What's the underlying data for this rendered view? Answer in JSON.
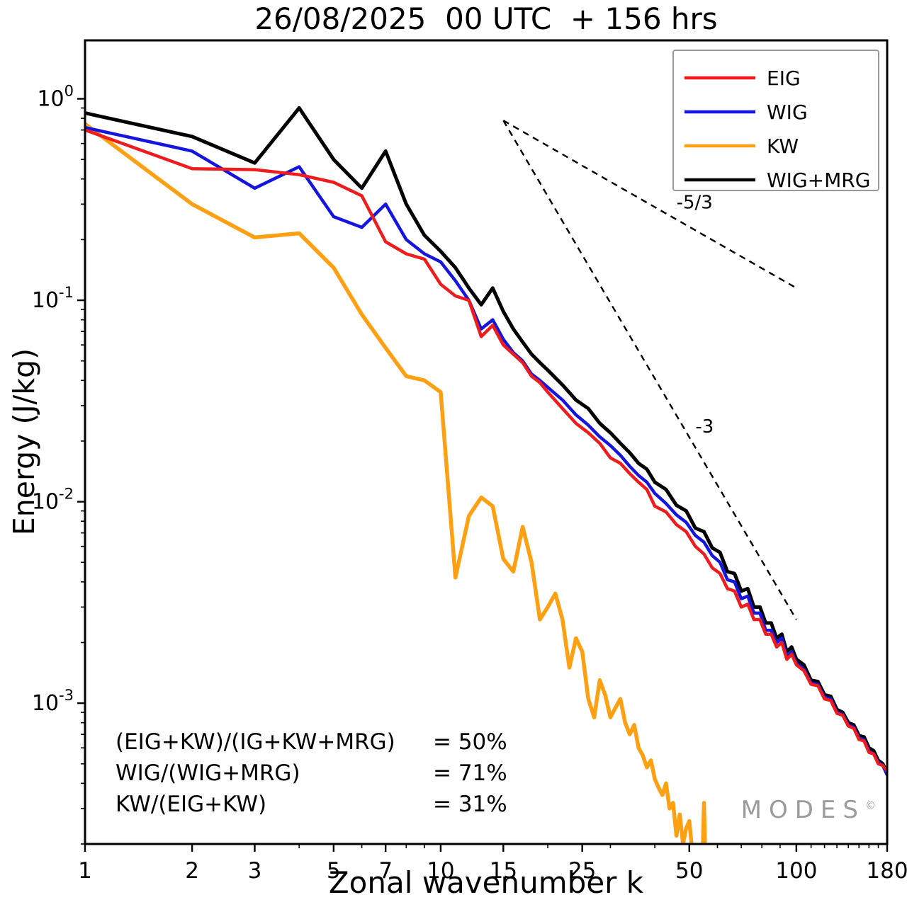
{
  "title": "26/08/2025  00 UTC  + 156 hrs",
  "watermark": {
    "text": "MODES",
    "symbol": "©"
  },
  "annotations": {
    "ratios": [
      {
        "label": "(EIG+KW)/(IG+KW+MRG)",
        "value": "= 50%"
      },
      {
        "label": "WIG/(WIG+MRG)",
        "value": "= 71%"
      },
      {
        "label": "KW/(EIG+KW)",
        "value": "= 31%"
      }
    ]
  },
  "chart_data": {
    "type": "line",
    "title": "26/08/2025  00 UTC  + 156 hrs",
    "xlabel": "Zonal wavenumber k",
    "ylabel": "Energy (J/kg)",
    "xscale": "log",
    "yscale": "log",
    "xlim": [
      1,
      180
    ],
    "ylim": [
      0.0002,
      1.95
    ],
    "grid": false,
    "legend_position": "upper right",
    "x_major_ticks": [
      1,
      2,
      3,
      5,
      7,
      10,
      15,
      25,
      50,
      100,
      180
    ],
    "x_minor_ticks": [
      4,
      6,
      8,
      9,
      20,
      30,
      40,
      60,
      70,
      80,
      90,
      110,
      120,
      130,
      140,
      150,
      160,
      170
    ],
    "y_major_ticks": [
      {
        "value": 1,
        "exponent": "0"
      },
      {
        "value": 0.1,
        "exponent": "-1"
      },
      {
        "value": 0.01,
        "exponent": "-2"
      },
      {
        "value": 0.001,
        "exponent": "-3"
      }
    ],
    "series": [
      {
        "name": "EIG",
        "color": "#ee1c1c",
        "z": 4,
        "x": [
          1,
          2,
          3,
          4,
          5,
          6,
          7,
          8,
          9,
          10,
          11,
          12,
          13,
          14,
          15,
          16,
          17,
          18,
          19,
          20,
          22,
          24,
          26,
          28,
          30,
          32,
          34,
          36,
          38,
          40,
          43,
          46,
          49,
          52,
          55,
          58,
          61,
          64,
          67,
          70,
          73,
          76,
          79,
          82,
          85,
          88,
          91,
          94,
          97,
          100,
          105,
          110,
          115,
          120,
          125,
          130,
          135,
          140,
          145,
          150,
          155,
          160,
          165,
          170,
          175,
          180
        ],
        "y": [
          0.7,
          0.45,
          0.445,
          0.42,
          0.385,
          0.33,
          0.195,
          0.17,
          0.16,
          0.12,
          0.105,
          0.1,
          0.066,
          0.075,
          0.06,
          0.054,
          0.049,
          0.042,
          0.039,
          0.035,
          0.029,
          0.0245,
          0.022,
          0.0195,
          0.0165,
          0.0155,
          0.0138,
          0.0125,
          0.0115,
          0.0095,
          0.0089,
          0.0077,
          0.0071,
          0.006,
          0.0055,
          0.0047,
          0.0044,
          0.0037,
          0.0036,
          0.003,
          0.0031,
          0.0026,
          0.0026,
          0.0022,
          0.0022,
          0.0019,
          0.002,
          0.00165,
          0.00175,
          0.00155,
          0.00145,
          0.00124,
          0.00122,
          0.00105,
          0.00103,
          0.00089,
          0.00087,
          0.00077,
          0.00075,
          0.00066,
          0.00065,
          0.00057,
          0.00056,
          0.0005,
          0.00049,
          0.00046
        ]
      },
      {
        "name": "WIG",
        "color": "#1515e0",
        "z": 3,
        "x": [
          1,
          2,
          3,
          4,
          5,
          6,
          7,
          8,
          9,
          10,
          11,
          12,
          13,
          14,
          15,
          16,
          17,
          18,
          19,
          20,
          22,
          24,
          26,
          28,
          30,
          32,
          34,
          36,
          38,
          40,
          43,
          46,
          49,
          52,
          55,
          58,
          61,
          64,
          67,
          70,
          73,
          76,
          79,
          82,
          85,
          88,
          91,
          94,
          97,
          100,
          105,
          110,
          115,
          120,
          125,
          130,
          135,
          140,
          145,
          150,
          155,
          160,
          165,
          170,
          175,
          180
        ],
        "y": [
          0.72,
          0.55,
          0.36,
          0.46,
          0.26,
          0.23,
          0.3,
          0.2,
          0.17,
          0.155,
          0.125,
          0.1,
          0.072,
          0.08,
          0.064,
          0.055,
          0.05,
          0.043,
          0.04,
          0.037,
          0.032,
          0.027,
          0.024,
          0.021,
          0.019,
          0.017,
          0.015,
          0.0135,
          0.0125,
          0.011,
          0.0098,
          0.0086,
          0.0079,
          0.0068,
          0.0063,
          0.0054,
          0.005,
          0.0041,
          0.004,
          0.0033,
          0.0034,
          0.0028,
          0.0028,
          0.0023,
          0.0023,
          0.002,
          0.0021,
          0.0017,
          0.0018,
          0.00158,
          0.00148,
          0.00126,
          0.00124,
          0.00107,
          0.00105,
          0.0009,
          0.00088,
          0.00078,
          0.00076,
          0.00067,
          0.00066,
          0.00058,
          0.00056,
          0.00051,
          0.00049,
          0.00044
        ]
      },
      {
        "name": "KW",
        "color": "#ffa012",
        "z": 2,
        "x": [
          1,
          2,
          3,
          4,
          5,
          6,
          7,
          8,
          9,
          10,
          11,
          12,
          13,
          14,
          15,
          16,
          17,
          18,
          19,
          20,
          21,
          22,
          23,
          24,
          25,
          26,
          27,
          28,
          29,
          30,
          31,
          32,
          33,
          34,
          35,
          36,
          37,
          38,
          39,
          40,
          41,
          42,
          43,
          44,
          45,
          46,
          47,
          48,
          49,
          50,
          51,
          52,
          53,
          54,
          55,
          56
        ],
        "y": [
          0.75,
          0.3,
          0.205,
          0.215,
          0.145,
          0.085,
          0.058,
          0.042,
          0.04,
          0.035,
          0.0042,
          0.0085,
          0.0105,
          0.0095,
          0.0052,
          0.0045,
          0.0075,
          0.005,
          0.0026,
          0.003,
          0.0035,
          0.0026,
          0.0015,
          0.0021,
          0.0018,
          0.00105,
          0.00085,
          0.0013,
          0.0011,
          0.00085,
          0.00095,
          0.00105,
          0.0008,
          0.0007,
          0.00078,
          0.0006,
          0.00055,
          0.00048,
          0.00052,
          0.00042,
          0.00038,
          0.00035,
          0.0004,
          0.0003,
          0.00032,
          0.00022,
          0.00028,
          0.0002,
          0.00024,
          0.00026,
          0.00018,
          0.00016,
          0.00011,
          9e-05,
          0.00032,
          8e-05
        ]
      },
      {
        "name": "WIG+MRG",
        "color": "#000000",
        "z": 1,
        "x": [
          1,
          2,
          3,
          4,
          5,
          6,
          7,
          8,
          9,
          10,
          11,
          12,
          13,
          14,
          15,
          16,
          17,
          18,
          19,
          20,
          22,
          24,
          26,
          28,
          30,
          32,
          34,
          36,
          38,
          40,
          43,
          46,
          49,
          52,
          55,
          58,
          61,
          64,
          67,
          70,
          73,
          76,
          79,
          82,
          85,
          88,
          91,
          94,
          97,
          100,
          105,
          110,
          115,
          120,
          125,
          130,
          135,
          140,
          145,
          150,
          155,
          160,
          165,
          170,
          175,
          180
        ],
        "y": [
          0.85,
          0.65,
          0.48,
          0.9,
          0.5,
          0.36,
          0.55,
          0.3,
          0.21,
          0.175,
          0.145,
          0.115,
          0.095,
          0.115,
          0.088,
          0.072,
          0.062,
          0.054,
          0.049,
          0.045,
          0.038,
          0.032,
          0.029,
          0.0245,
          0.022,
          0.0195,
          0.0175,
          0.0155,
          0.0145,
          0.0125,
          0.0115,
          0.0096,
          0.009,
          0.0074,
          0.0071,
          0.0059,
          0.0056,
          0.0045,
          0.0044,
          0.0036,
          0.0037,
          0.003,
          0.003,
          0.0025,
          0.0025,
          0.0021,
          0.0022,
          0.0018,
          0.0019,
          0.00165,
          0.00155,
          0.0013,
          0.00128,
          0.0011,
          0.00108,
          0.00093,
          0.0009,
          0.0008,
          0.00078,
          0.00069,
          0.00068,
          0.0006,
          0.00058,
          0.00052,
          0.0005,
          0.00045
        ]
      }
    ],
    "reference_lines": [
      {
        "label": "-5/3",
        "style": "dashed",
        "x": [
          15,
          100
        ],
        "y": [
          0.78,
          0.115
        ],
        "label_at": [
          46,
          0.285
        ]
      },
      {
        "label": "-3",
        "style": "dashed",
        "x": [
          15,
          100
        ],
        "y": [
          0.78,
          0.0026
        ],
        "label_at": [
          52,
          0.022
        ]
      }
    ]
  }
}
